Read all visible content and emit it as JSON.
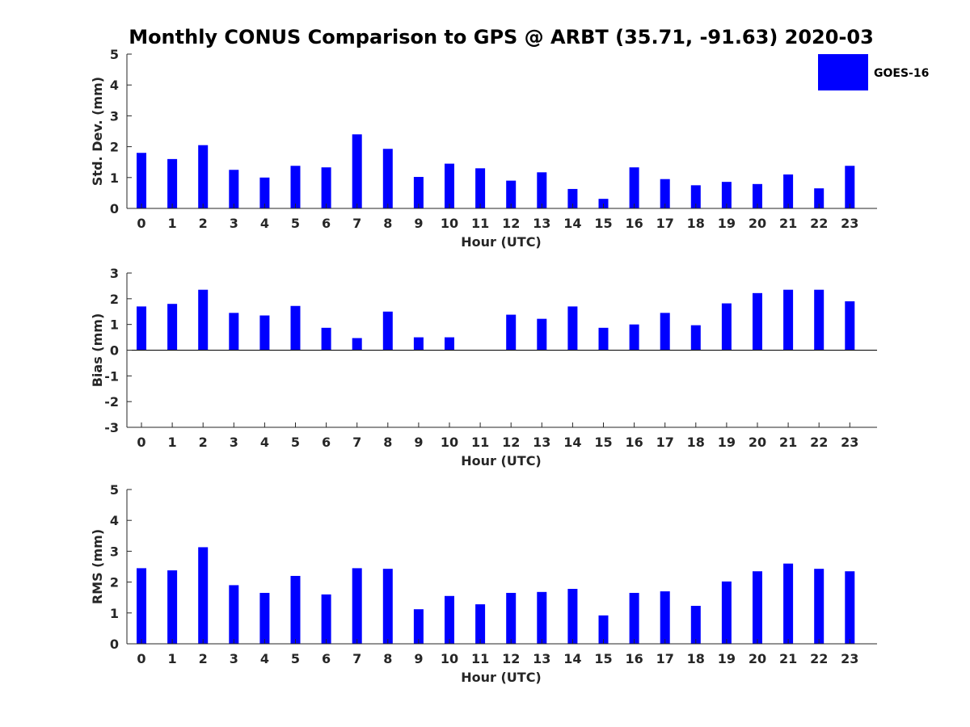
{
  "figure": {
    "title": "Monthly CONUS Comparison to GPS @ ARBT (35.71, -91.63) 2020-03",
    "legend": {
      "label": "GOES-16",
      "color": "#0000ff",
      "placement": "top-right"
    }
  },
  "chart_data": [
    {
      "type": "bar",
      "categories": [
        "0",
        "1",
        "2",
        "3",
        "4",
        "5",
        "6",
        "7",
        "8",
        "9",
        "10",
        "11",
        "12",
        "13",
        "14",
        "15",
        "16",
        "17",
        "18",
        "19",
        "20",
        "21",
        "22",
        "23"
      ],
      "series": [
        {
          "name": "GOES-16",
          "color": "#0000ff",
          "values": [
            1.8,
            1.6,
            2.05,
            1.25,
            1.0,
            1.38,
            1.33,
            2.4,
            1.93,
            1.02,
            1.45,
            1.3,
            0.9,
            1.17,
            0.63,
            0.31,
            1.33,
            0.95,
            0.75,
            0.86,
            0.79,
            1.1,
            0.65,
            1.38
          ]
        }
      ],
      "xlabel": "Hour (UTC)",
      "ylabel": "Std. Dev. (mm)",
      "ylim": [
        0,
        5
      ],
      "yticks": [
        "0",
        "1",
        "2",
        "3",
        "4",
        "5"
      ],
      "grid": false
    },
    {
      "type": "bar",
      "categories": [
        "0",
        "1",
        "2",
        "3",
        "4",
        "5",
        "6",
        "7",
        "8",
        "9",
        "10",
        "11",
        "12",
        "13",
        "14",
        "15",
        "16",
        "17",
        "18",
        "19",
        "20",
        "21",
        "22",
        "23"
      ],
      "series": [
        {
          "name": "GOES-16",
          "color": "#0000ff",
          "values": [
            1.7,
            1.8,
            2.35,
            1.45,
            1.35,
            1.72,
            0.87,
            0.47,
            1.5,
            0.5,
            0.5,
            0.0,
            1.38,
            1.22,
            1.7,
            0.87,
            1.0,
            1.45,
            0.97,
            1.82,
            2.22,
            2.35,
            2.35,
            1.9
          ]
        }
      ],
      "xlabel": "Hour (UTC)",
      "ylabel": "Bias (mm)",
      "ylim": [
        -3,
        3
      ],
      "yticks": [
        "-3",
        "-2",
        "-1",
        "0",
        "1",
        "2",
        "3"
      ],
      "grid": false
    },
    {
      "type": "bar",
      "categories": [
        "0",
        "1",
        "2",
        "3",
        "4",
        "5",
        "6",
        "7",
        "8",
        "9",
        "10",
        "11",
        "12",
        "13",
        "14",
        "15",
        "16",
        "17",
        "18",
        "19",
        "20",
        "21",
        "22",
        "23"
      ],
      "series": [
        {
          "name": "GOES-16",
          "color": "#0000ff",
          "values": [
            2.45,
            2.38,
            3.13,
            1.9,
            1.65,
            2.2,
            1.6,
            2.45,
            2.43,
            1.12,
            1.55,
            1.28,
            1.65,
            1.68,
            1.78,
            0.92,
            1.65,
            1.7,
            1.23,
            2.02,
            2.35,
            2.6,
            2.43,
            2.35
          ]
        }
      ],
      "xlabel": "Hour (UTC)",
      "ylabel": "RMS (mm)",
      "ylim": [
        0,
        5
      ],
      "yticks": [
        "0",
        "1",
        "2",
        "3",
        "4",
        "5"
      ],
      "grid": false
    }
  ]
}
